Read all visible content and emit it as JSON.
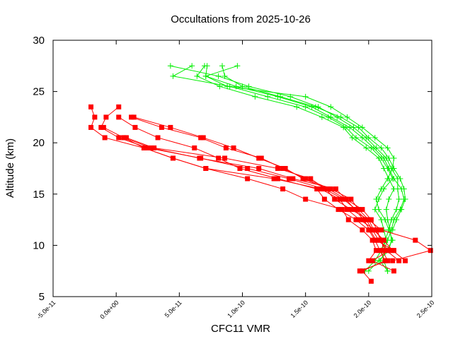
{
  "chart_data": {
    "type": "line",
    "title": "Occultations from 2025-10-26",
    "xlabel": "CFC11 VMR",
    "ylabel": "Altitude (km)",
    "xlim": [
      -5e-11,
      2.5e-10
    ],
    "ylim": [
      5,
      30
    ],
    "x_ticks": [
      -5e-11,
      0,
      5e-11,
      1e-10,
      1.5e-10,
      2e-10,
      2.5e-10
    ],
    "x_tick_labels": [
      "-5.0e-11",
      "0.0e+00",
      "5.0e-11",
      "1.0e-10",
      "1.5e-10",
      "2.0e-10",
      "2.5e-10"
    ],
    "y_ticks": [
      5,
      10,
      15,
      20,
      25,
      30
    ],
    "y_tick_labels": [
      "5",
      "10",
      "15",
      "20",
      "25",
      "30"
    ],
    "grid": false,
    "legend": "none",
    "x_unit_note": "x values below in units of 1e-11",
    "series": [
      {
        "name": "red-profiles",
        "color": "#ff0000",
        "marker": "square",
        "profiles": [
          [
            [
              23.5,
              -2.0
            ],
            [
              22.5,
              -1.7
            ],
            [
              21.5,
              -2.0
            ],
            [
              20.5,
              -0.9
            ],
            [
              19.5,
              2.2
            ],
            [
              18.5,
              4.5
            ],
            [
              17.5,
              7.1
            ],
            [
              16.5,
              12.5
            ],
            [
              15.5,
              16.2
            ],
            [
              14.5,
              17.7
            ],
            [
              13.5,
              18.3
            ],
            [
              12.5,
              19.3
            ],
            [
              11.5,
              20.5
            ],
            [
              10.5,
              21.1
            ],
            [
              9.5,
              21.1
            ],
            [
              8.5,
              21.5
            ],
            [
              7.5,
              19.3
            ]
          ],
          [
            [
              23.5,
              0.2
            ],
            [
              22.5,
              -0.8
            ],
            [
              21.5,
              -1.2
            ],
            [
              20.5,
              0.2
            ],
            [
              19.5,
              2.5
            ],
            [
              18.5,
              6.7
            ],
            [
              17.5,
              10.4
            ],
            [
              16.5,
              13.7
            ],
            [
              15.5,
              16.5
            ],
            [
              14.5,
              18.0
            ],
            [
              13.5,
              19.0
            ],
            [
              12.5,
              19.8
            ],
            [
              11.5,
              20.3
            ],
            [
              10.5,
              20.8
            ],
            [
              9.5,
              21.6
            ],
            [
              8.5,
              20.3
            ],
            [
              7.5,
              22.0
            ]
          ],
          [
            [
              22.5,
              0.2
            ],
            [
              21.5,
              1.5
            ],
            [
              20.5,
              3.3
            ],
            [
              19.5,
              6.2
            ],
            [
              18.5,
              8.1
            ],
            [
              17.5,
              9.8
            ],
            [
              16.5,
              12.8
            ],
            [
              15.5,
              15.9
            ],
            [
              14.5,
              16.5
            ],
            [
              13.5,
              17.6
            ],
            [
              12.5,
              19.0
            ],
            [
              11.5,
              20.0
            ],
            [
              10.5,
              20.5
            ],
            [
              9.5,
              20.9
            ],
            [
              8.5,
              21.3
            ],
            [
              7.5,
              19.5
            ],
            [
              6.5,
              20.2
            ]
          ],
          [
            [
              22.5,
              1.2
            ],
            [
              21.5,
              3.6
            ],
            [
              20.5,
              6.7
            ],
            [
              19.5,
              8.7
            ],
            [
              18.5,
              11.5
            ],
            [
              17.5,
              13.2
            ],
            [
              16.5,
              15.0
            ],
            [
              15.5,
              17.0
            ],
            [
              14.5,
              18.6
            ],
            [
              13.5,
              19.2
            ],
            [
              12.5,
              20.0
            ],
            [
              11.5,
              21.0
            ],
            [
              10.5,
              23.7
            ],
            [
              9.5,
              24.9
            ],
            [
              8.5,
              21.9
            ]
          ],
          [
            [
              22.5,
              1.4
            ],
            [
              21.5,
              4.3
            ],
            [
              20.5,
              6.9
            ],
            [
              19.5,
              9.3
            ],
            [
              18.5,
              11.3
            ],
            [
              17.5,
              13.4
            ],
            [
              16.5,
              14.8
            ],
            [
              15.5,
              16.8
            ],
            [
              14.5,
              18.2
            ],
            [
              13.5,
              19.5
            ],
            [
              12.5,
              20.2
            ],
            [
              11.5,
              20.7
            ],
            [
              10.5,
              20.9
            ],
            [
              9.5,
              21.4
            ],
            [
              8.5,
              22.4
            ]
          ],
          [
            [
              21.5,
              -1.0
            ],
            [
              20.5,
              0.6
            ],
            [
              19.5,
              2.8
            ],
            [
              18.5,
              6.6
            ],
            [
              17.5,
              11.3
            ],
            [
              16.5,
              14.0
            ],
            [
              15.5,
              17.4
            ],
            [
              14.5,
              18.2
            ],
            [
              13.5,
              18.9
            ],
            [
              12.5,
              19.6
            ],
            [
              11.5,
              20.1
            ],
            [
              10.5,
              20.6
            ],
            [
              9.5,
              22.0
            ]
          ],
          [
            [
              20.5,
              0.8
            ],
            [
              19.5,
              3.0
            ],
            [
              18.5,
              8.6
            ],
            [
              17.5,
              12.8
            ],
            [
              16.5,
              15.4
            ],
            [
              15.5,
              16.6
            ],
            [
              14.5,
              17.3
            ],
            [
              13.5,
              18.6
            ],
            [
              12.5,
              20.0
            ],
            [
              11.5,
              20.4
            ],
            [
              10.5,
              21.2
            ],
            [
              9.5,
              21.9
            ],
            [
              8.5,
              22.9
            ]
          ],
          [
            [
              20.5,
              0.6
            ],
            [
              19.5,
              2.2
            ],
            [
              18.5,
              4.5
            ],
            [
              17.5,
              7.1
            ],
            [
              16.5,
              10.4
            ],
            [
              15.5,
              13.2
            ],
            [
              14.5,
              15.0
            ],
            [
              13.5,
              17.9
            ],
            [
              12.5,
              18.4
            ],
            [
              11.5,
              19.5
            ],
            [
              10.5,
              20.3
            ],
            [
              9.5,
              20.6
            ],
            [
              8.5,
              20.0
            ]
          ]
        ]
      },
      {
        "name": "green-profiles",
        "color": "#00ee00",
        "marker": "plus",
        "profiles": [
          [
            [
              27.5,
              4.3
            ],
            [
              26.5,
              8.1
            ],
            [
              25.5,
              10.5
            ],
            [
              24.5,
              13.8
            ],
            [
              23.5,
              16.0
            ],
            [
              22.5,
              17.5
            ],
            [
              21.5,
              18.8
            ],
            [
              20.5,
              19.8
            ],
            [
              19.5,
              20.6
            ],
            [
              18.5,
              21.4
            ],
            [
              17.5,
              21.8
            ],
            [
              16.5,
              22.3
            ],
            [
              15.5,
              22.3
            ],
            [
              14.5,
              22.4
            ],
            [
              13.5,
              22.2
            ],
            [
              12.5,
              21.8
            ],
            [
              11.5,
              21.6
            ],
            [
              10.5,
              21.3
            ],
            [
              9.5,
              21.0
            ],
            [
              8.5,
              20.5
            ],
            [
              7.5,
              19.7
            ]
          ],
          [
            [
              27.5,
              6.0
            ],
            [
              26.5,
              4.5
            ],
            [
              25.5,
              9.0
            ],
            [
              24.5,
              12.0
            ],
            [
              23.5,
              15.0
            ],
            [
              22.5,
              16.8
            ],
            [
              21.5,
              18.2
            ],
            [
              20.5,
              19.0
            ],
            [
              19.5,
              20.2
            ],
            [
              18.5,
              21.0
            ],
            [
              17.5,
              21.5
            ],
            [
              16.5,
              21.9
            ],
            [
              15.5,
              21.2
            ],
            [
              14.5,
              20.8
            ],
            [
              13.5,
              20.5
            ],
            [
              12.5,
              21.0
            ],
            [
              11.5,
              21.2
            ],
            [
              10.5,
              21.4
            ],
            [
              9.5,
              21.0
            ],
            [
              8.5,
              21.2
            ],
            [
              7.5,
              21.5
            ]
          ],
          [
            [
              27.5,
              7.0
            ],
            [
              26.5,
              6.4
            ],
            [
              25.5,
              8.2
            ],
            [
              24.5,
              11.0
            ],
            [
              23.5,
              14.3
            ],
            [
              22.5,
              16.3
            ],
            [
              21.5,
              18.0
            ],
            [
              20.5,
              18.7
            ],
            [
              19.5,
              19.8
            ],
            [
              18.5,
              20.8
            ],
            [
              17.5,
              21.2
            ],
            [
              16.5,
              21.6
            ],
            [
              15.5,
              22.0
            ],
            [
              14.5,
              21.6
            ],
            [
              13.5,
              21.4
            ],
            [
              12.5,
              21.5
            ],
            [
              11.5,
              21.7
            ],
            [
              10.5,
              21.8
            ],
            [
              9.5,
              21.6
            ],
            [
              8.5,
              20.8
            ],
            [
              7.5,
              20.0
            ]
          ],
          [
            [
              27.5,
              7.2
            ],
            [
              26.5,
              7.1
            ],
            [
              25.5,
              9.5
            ],
            [
              24.5,
              12.8
            ],
            [
              23.5,
              15.5
            ],
            [
              22.5,
              17.0
            ],
            [
              21.5,
              18.5
            ],
            [
              20.5,
              19.5
            ],
            [
              19.5,
              20.4
            ],
            [
              18.5,
              21.2
            ],
            [
              17.5,
              21.6
            ],
            [
              16.5,
              22.0
            ],
            [
              15.5,
              22.6
            ],
            [
              14.5,
              22.8
            ],
            [
              13.5,
              22.5
            ],
            [
              12.5,
              22.0
            ],
            [
              11.5,
              21.8
            ],
            [
              10.5,
              21.5
            ],
            [
              9.5,
              21.2
            ]
          ],
          [
            [
              27.5,
              8.4
            ],
            [
              26.5,
              8.6
            ],
            [
              25.5,
              10.0
            ],
            [
              24.5,
              13.0
            ],
            [
              23.5,
              15.8
            ],
            [
              22.5,
              17.8
            ],
            [
              21.5,
              19.2
            ],
            [
              20.5,
              20.0
            ],
            [
              19.5,
              21.0
            ],
            [
              18.5,
              21.6
            ],
            [
              17.5,
              22.0
            ],
            [
              16.5,
              22.5
            ],
            [
              15.5,
              22.8
            ],
            [
              14.5,
              22.9
            ],
            [
              13.5,
              22.6
            ],
            [
              12.5,
              22.2
            ],
            [
              11.5,
              21.9
            ]
          ],
          [
            [
              27.5,
              9.6
            ],
            [
              26.5,
              7.1
            ],
            [
              25.5,
              8.8
            ],
            [
              24.5,
              15.0
            ],
            [
              23.5,
              17.0
            ],
            [
              22.5,
              18.3
            ],
            [
              21.5,
              19.5
            ],
            [
              20.5,
              20.5
            ],
            [
              19.5,
              21.5
            ],
            [
              18.5,
              22.0
            ],
            [
              17.5,
              21.9
            ],
            [
              16.5,
              21.5
            ],
            [
              15.5,
              21.0
            ],
            [
              14.5,
              20.6
            ],
            [
              13.5,
              20.8
            ],
            [
              12.5,
              21.3
            ],
            [
              11.5,
              21.6
            ],
            [
              10.5,
              21.9
            ],
            [
              9.5,
              21.4
            ],
            [
              8.5,
              20.9
            ],
            [
              7.5,
              21.5
            ]
          ]
        ]
      }
    ]
  }
}
